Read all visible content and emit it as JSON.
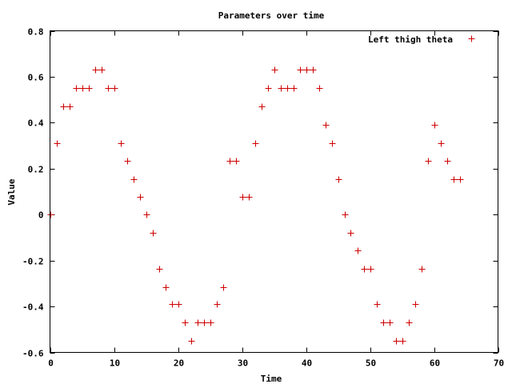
{
  "chart_data": {
    "type": "scatter",
    "title": "Parameters over time",
    "xlabel": "Time",
    "ylabel": "Value",
    "xlim": [
      0,
      70
    ],
    "ylim": [
      -0.6,
      0.8
    ],
    "x_ticks": [
      0,
      10,
      20,
      30,
      40,
      50,
      60,
      70
    ],
    "x_tick_labels": [
      "0",
      "10",
      "20",
      "30",
      "40",
      "50",
      "60",
      "70"
    ],
    "y_ticks": [
      -0.6,
      -0.4,
      -0.2,
      0,
      0.2,
      0.4,
      0.6,
      0.8
    ],
    "y_tick_labels": [
      "-0.6",
      "-0.4",
      "-0.2",
      "0",
      "0.2",
      "0.4",
      "0.6",
      "0.8"
    ],
    "grid": false,
    "legend_position": "top-right",
    "series": [
      {
        "name": "Left thigh theta",
        "color": "#cc0000",
        "marker": "plus",
        "x": [
          0,
          1,
          2,
          3,
          4,
          5,
          6,
          7,
          8,
          9,
          10,
          11,
          12,
          13,
          14,
          15,
          16,
          17,
          18,
          19,
          20,
          21,
          22,
          23,
          24,
          25,
          26,
          27,
          28,
          29,
          30,
          31,
          32,
          33,
          34,
          35,
          36,
          37,
          38,
          39,
          40,
          41,
          42,
          43,
          44,
          45,
          46,
          47,
          48,
          49,
          50,
          51,
          52,
          53,
          54,
          55,
          56,
          57,
          58,
          59,
          60,
          61,
          62,
          63,
          64
        ],
        "y": [
          0,
          0.31,
          0.47,
          0.47,
          0.55,
          0.55,
          0.55,
          0.63,
          0.63,
          0.55,
          0.55,
          0.31,
          0.235,
          0.155,
          0.078,
          0,
          -0.078,
          -0.235,
          -0.315,
          -0.39,
          -0.39,
          -0.47,
          -0.55,
          -0.47,
          -0.47,
          -0.47,
          -0.39,
          -0.315,
          0.235,
          0.235,
          0.078,
          0.078,
          0.31,
          0.47,
          0.55,
          0.63,
          0.55,
          0.55,
          0.55,
          0.63,
          0.63,
          0.63,
          0.55,
          0.39,
          0.31,
          0.155,
          0,
          -0.078,
          -0.155,
          -0.235,
          -0.235,
          -0.39,
          -0.47,
          -0.47,
          -0.55,
          -0.55,
          -0.47,
          -0.39,
          -0.235,
          0.235,
          0.39,
          0.31,
          0.235,
          0.155,
          0.155
        ]
      }
    ]
  }
}
